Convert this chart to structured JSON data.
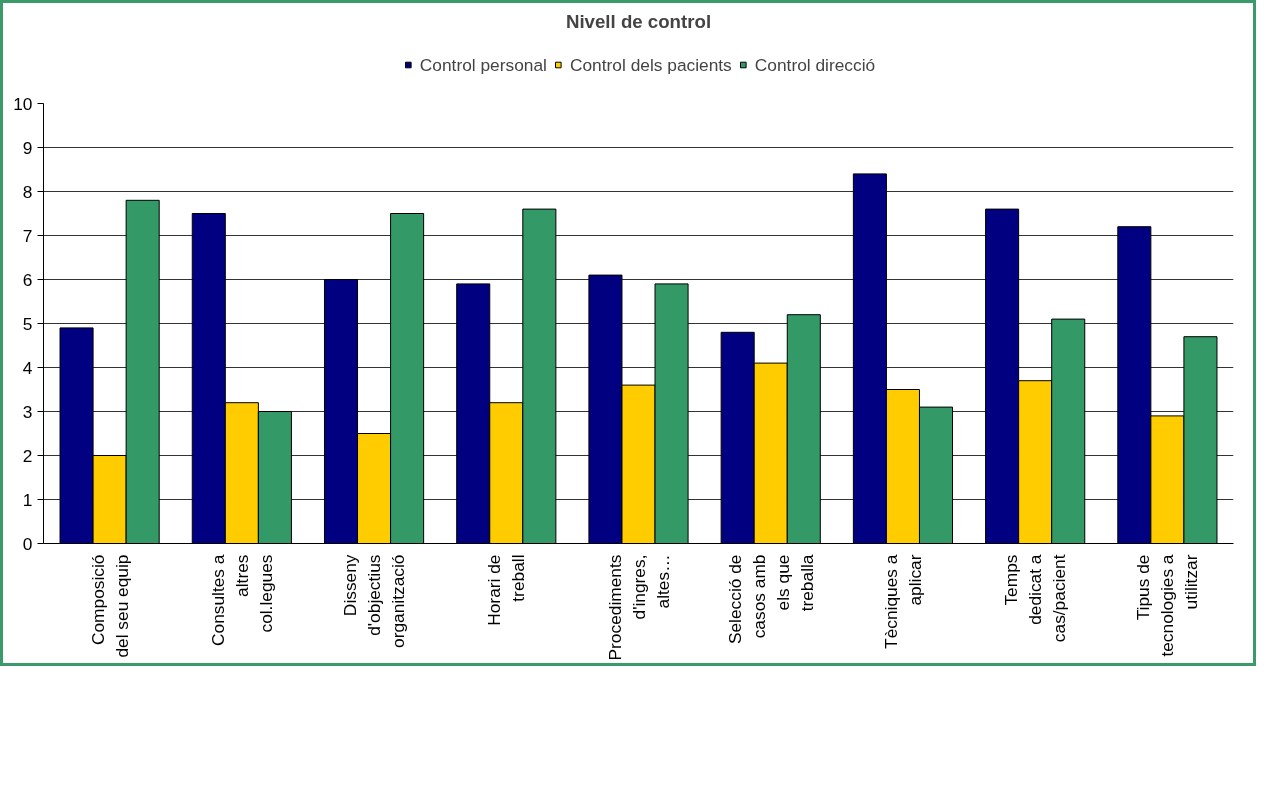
{
  "chart_data": {
    "type": "bar",
    "title": "Nivell de control",
    "categories": [
      "Composició\ndel seu equip",
      "Consultes a\naltres\ncol.legues",
      "Disseny\nd'objectius\norganització",
      "Horari de\ntreball",
      "Procediments\nd'ingres,\naltes…",
      "Selecció de\ncasos amb\nels que\ntreballa",
      "Tècniques a\naplicar",
      "Temps\ndedicat a\ncas/pacient",
      "Tipus de\ntecnologies a\nutilitzar"
    ],
    "series": [
      {
        "name": "Control personal",
        "color": "#000080",
        "values": [
          4.9,
          7.5,
          6.0,
          5.9,
          6.1,
          4.8,
          8.4,
          7.6,
          7.2
        ]
      },
      {
        "name": "Control dels pacients",
        "color": "#ffcc00",
        "values": [
          2.0,
          3.2,
          2.5,
          3.2,
          3.6,
          4.1,
          3.5,
          3.7,
          2.9
        ]
      },
      {
        "name": "Control direcció",
        "color": "#339966",
        "values": [
          7.8,
          3.0,
          7.5,
          7.6,
          5.9,
          5.2,
          3.1,
          5.1,
          4.7
        ]
      }
    ],
    "ylim": [
      0,
      10
    ],
    "yticks": [
      0,
      1,
      2,
      3,
      4,
      5,
      6,
      7,
      8,
      9,
      10
    ],
    "grid": "y",
    "legend": "top"
  }
}
